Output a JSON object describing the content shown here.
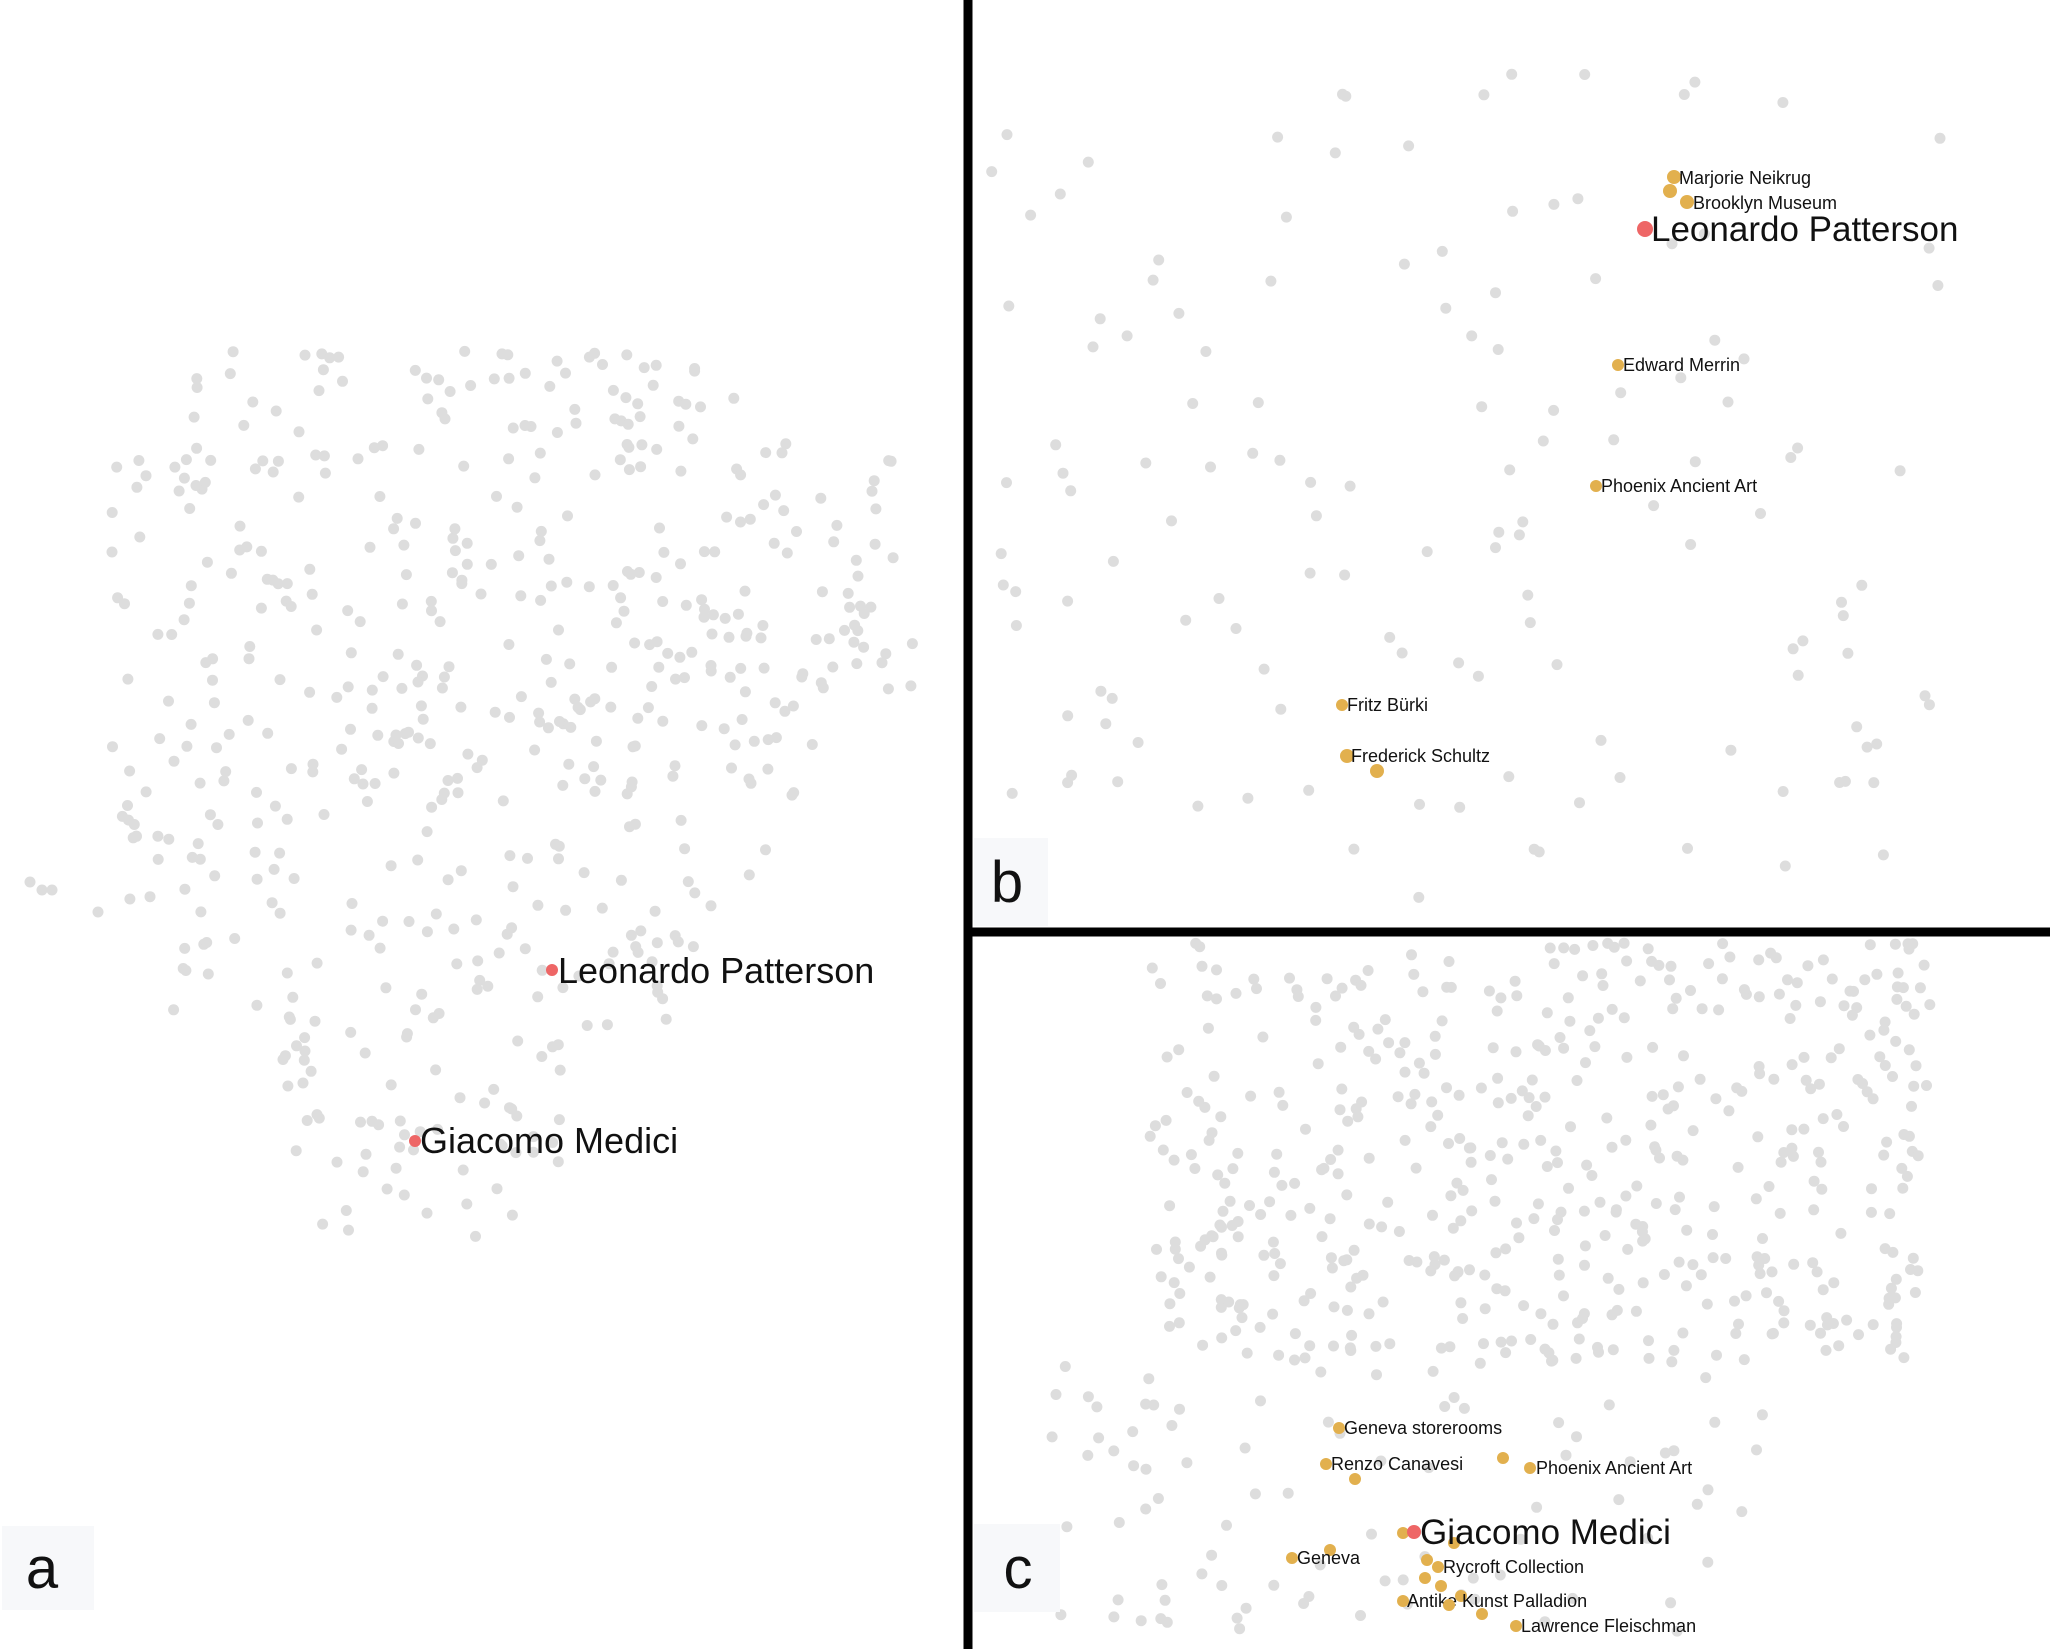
{
  "colors": {
    "background_point": "#dddddd",
    "highlight_red": "#ee6666",
    "highlight_orange": "#e2b04e",
    "divider": "#000000",
    "label_text": "#111111",
    "panel_letter_bg": "#f7f8fa"
  },
  "panels": [
    {
      "letter": "a",
      "highlights": [
        {
          "label": "Leonardo Patterson",
          "kind": "focus"
        },
        {
          "label": "Giacomo Medici",
          "kind": "focus"
        }
      ]
    },
    {
      "letter": "b",
      "focus": "Leonardo Patterson",
      "labels": [
        "Marjorie Neikrug",
        "Brooklyn Museum",
        "Leonardo Patterson",
        "Edward Merrin",
        "Phoenix Ancient Art",
        "Fritz Bürki",
        "Frederick Schultz"
      ]
    },
    {
      "letter": "c",
      "focus": "Giacomo Medici",
      "labels": [
        "Geneva storerooms",
        "Renzo Canavesi",
        "Phoenix Ancient Art",
        "Giacomo Medici",
        "Geneva",
        "Rycroft Collection",
        "Antike Kunst Palladion",
        "Lawrence Fleischman"
      ]
    }
  ],
  "chart_data": [
    {
      "type": "scatter",
      "panel": "a",
      "description_visible": "full network embedding of ~500 gray nodes",
      "highlighted_points": [
        {
          "name": "Leonardo Patterson"
        },
        {
          "name": "Giacomo Medici"
        }
      ]
    },
    {
      "type": "scatter",
      "panel": "b",
      "focus": "Leonardo Patterson",
      "highlighted_points": [
        {
          "name": "Marjorie Neikrug"
        },
        {
          "name": "Brooklyn Museum"
        },
        {
          "name": "Leonardo Patterson"
        },
        {
          "name": "Edward Merrin"
        },
        {
          "name": "Phoenix Ancient Art"
        },
        {
          "name": "Fritz Bürki"
        },
        {
          "name": "Frederick Schultz"
        }
      ]
    },
    {
      "type": "scatter",
      "panel": "c",
      "focus": "Giacomo Medici",
      "highlighted_points": [
        {
          "name": "Geneva storerooms"
        },
        {
          "name": "Renzo Canavesi"
        },
        {
          "name": "Phoenix Ancient Art"
        },
        {
          "name": "Giacomo Medici"
        },
        {
          "name": "Geneva"
        },
        {
          "name": "Rycroft Collection"
        },
        {
          "name": "Antike Kunst Palladion"
        },
        {
          "name": "Lawrence Fleischman"
        }
      ]
    }
  ]
}
